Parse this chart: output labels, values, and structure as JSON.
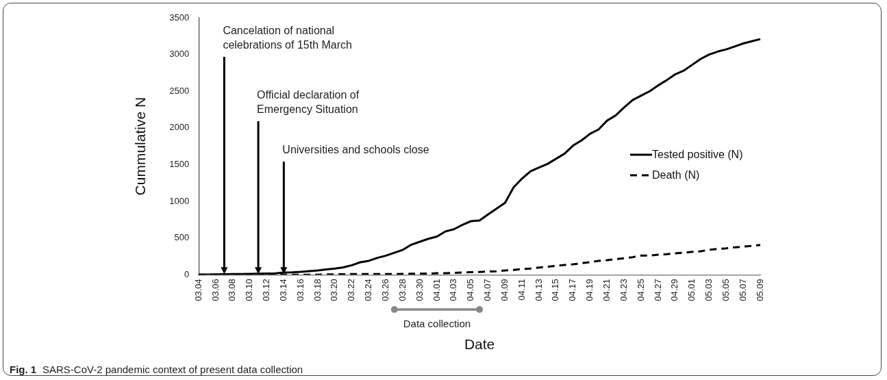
{
  "chart_data": {
    "type": "line",
    "xlabel": "Date",
    "ylabel": "Cummulative N",
    "categories": [
      "03.04",
      null,
      "03.06",
      null,
      "03.08",
      null,
      "03.10",
      null,
      "03.12",
      null,
      "03.14",
      null,
      "03.16",
      null,
      "03.18",
      null,
      "03.20",
      null,
      "03.22",
      null,
      "03.24",
      null,
      "03.26",
      null,
      "03.28",
      null,
      "03.30",
      null,
      "04.01",
      null,
      "04.03",
      null,
      "04.05",
      null,
      "04.07",
      null,
      "04.09",
      null,
      "04.11",
      null,
      "04.13",
      null,
      "04.15",
      null,
      "04.17",
      null,
      "04.19",
      null,
      "04.21",
      null,
      "04.23",
      null,
      "04.25",
      null,
      "04.27",
      null,
      "04.29",
      null,
      "05.01",
      null,
      "05.03",
      null,
      "05.05",
      null,
      "05.07",
      null,
      "05.09"
    ],
    "series": [
      {
        "name": "Tested positive (N)",
        "color": "#000000",
        "line_style": "solid",
        "values": [
          2,
          2,
          4,
          7,
          9,
          9,
          12,
          13,
          16,
          19,
          30,
          32,
          39,
          50,
          58,
          73,
          85,
          100,
          130,
          170,
          190,
          230,
          260,
          300,
          340,
          410,
          450,
          490,
          520,
          590,
          620,
          680,
          730,
          740,
          820,
          900,
          980,
          1190,
          1310,
          1410,
          1460,
          1510,
          1580,
          1650,
          1760,
          1830,
          1920,
          1980,
          2100,
          2170,
          2280,
          2380,
          2440,
          2500,
          2580,
          2650,
          2730,
          2780,
          2860,
          2940,
          3000,
          3040,
          3070,
          3110,
          3150,
          3180,
          3210
        ]
      },
      {
        "name": "Death (N)",
        "color": "#000000",
        "line_style": "dashed",
        "values": [
          0,
          0,
          0,
          0,
          0,
          0,
          0,
          0,
          0,
          0,
          0,
          1,
          1,
          1,
          1,
          4,
          6,
          7,
          9,
          10,
          10,
          10,
          10,
          10,
          11,
          13,
          15,
          16,
          20,
          21,
          26,
          32,
          34,
          38,
          43,
          47,
          58,
          66,
          77,
          85,
          99,
          109,
          122,
          134,
          142,
          156,
          172,
          189,
          199,
          213,
          225,
          239,
          262,
          262,
          272,
          280,
          291,
          300,
          312,
          320,
          340,
          351,
          360,
          373,
          383,
          392,
          405
        ]
      }
    ],
    "ylim": [
      0,
      3500
    ],
    "yticks": [
      0,
      500,
      1000,
      1500,
      2000,
      2500,
      3000,
      3500
    ],
    "grid": false,
    "legend": "right",
    "marker": "none",
    "annotations": [
      "Cancelation of national celebrations of 15th March",
      "Official declaration of Emergency Situation",
      "Universities and schools close",
      "Data collection",
      "Fig. 1",
      "SARS-CoV-2 pandemic context of present data collection"
    ]
  }
}
